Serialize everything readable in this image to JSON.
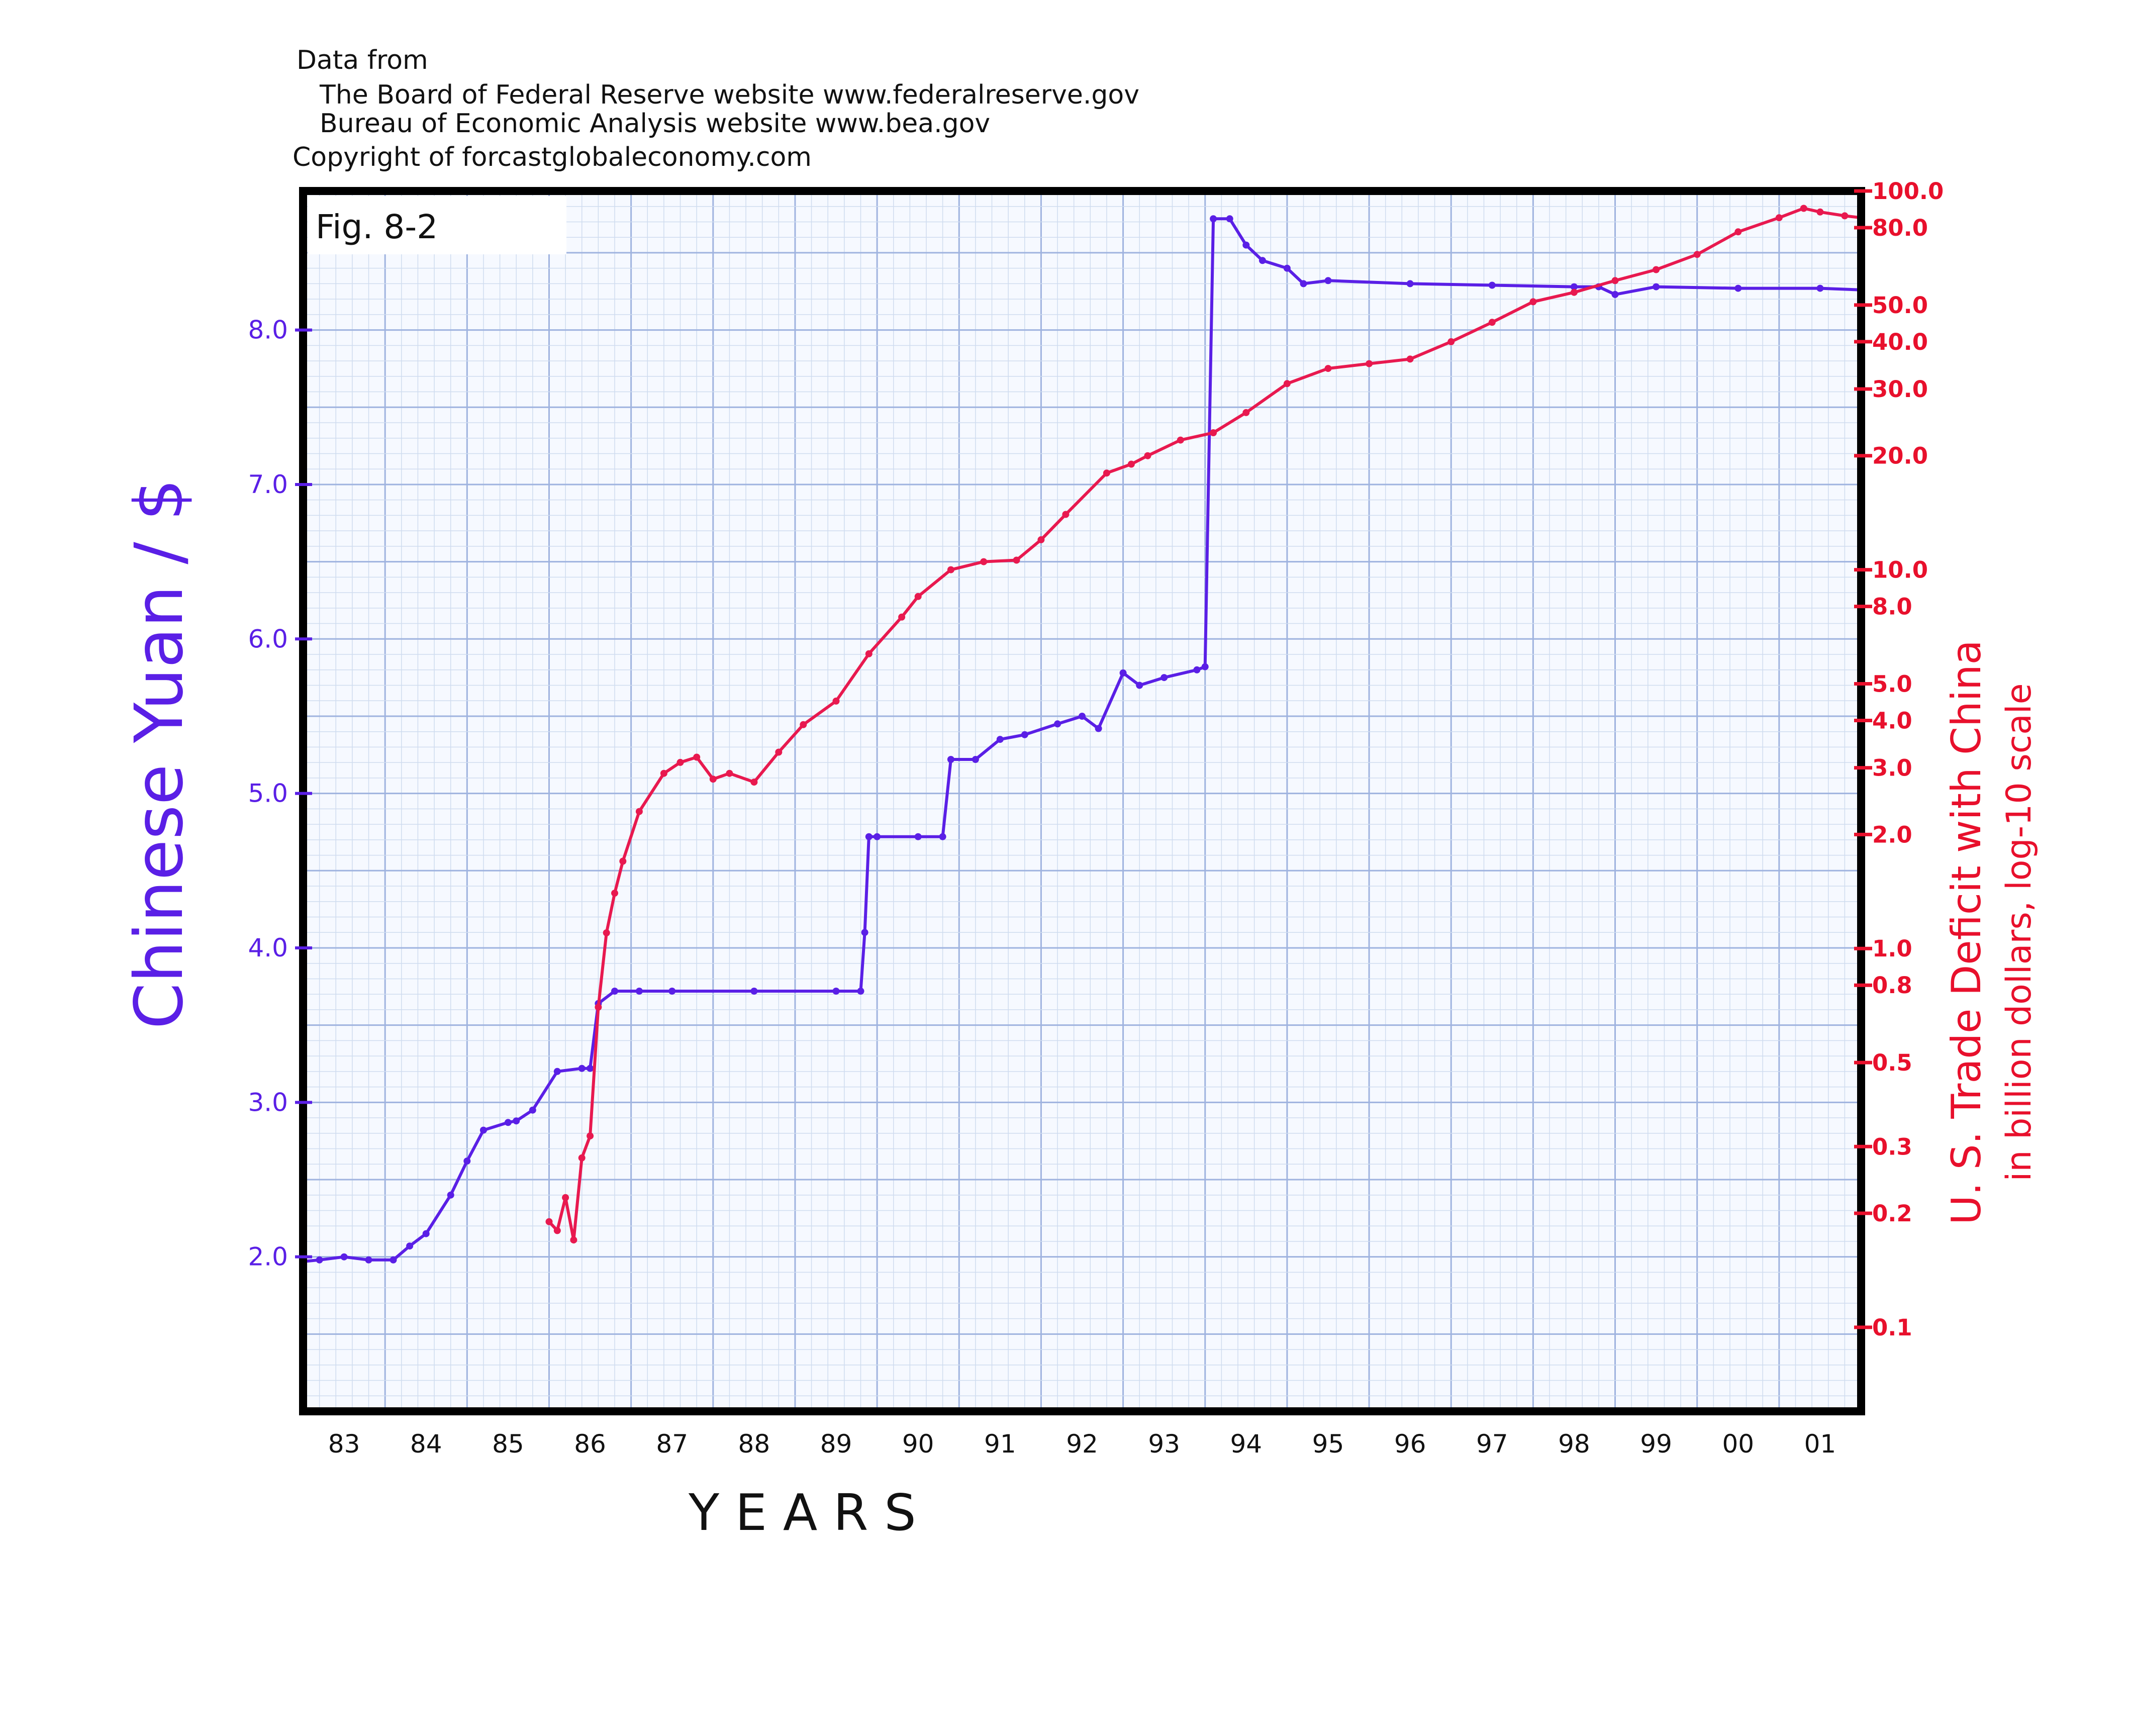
{
  "source": {
    "line1": "Data from",
    "line2": "The Board of Federal Reserve website www.federalreserve.gov",
    "line3": "Bureau of Economic Analysis website www.bea.gov",
    "line4": "Copyright of forcastglobaleconomy.com"
  },
  "colors": {
    "yuan": "#5a1fe6",
    "deficit": "#e8194f",
    "deficit_tick": "#e8102c",
    "grid_minor": "#cfdcef",
    "grid_major": "#9fb3df",
    "frame": "#000000",
    "background": "#ffffff"
  },
  "chart_data": {
    "type": "line",
    "title": "Fig. 8-2",
    "xlabel": "Y E A R S",
    "ylabel": "Chinese Yuan / $",
    "y2label": "U. S. Trade Deficit with China",
    "y2label_sub": "in billion dollars, log-10 scale",
    "x_ticks": [
      "83",
      "84",
      "85",
      "86",
      "87",
      "88",
      "89",
      "90",
      "91",
      "92",
      "93",
      "94",
      "95",
      "96",
      "97",
      "98",
      "99",
      "00",
      "01"
    ],
    "xlim": [
      1982.5,
      2001.5
    ],
    "y_ticks": [
      "2.0",
      "3.0",
      "4.0",
      "5.0",
      "6.0",
      "7.0",
      "8.0"
    ],
    "ylim": [
      1.0,
      8.9
    ],
    "y2_scale": "log10",
    "y2_ticks": [
      "0.1",
      "0.2",
      "0.3",
      "0.5",
      "0.8",
      "1.0",
      "2.0",
      "3.0",
      "4.0",
      "5.0",
      "8.0",
      "10.0",
      "20.0",
      "30.0",
      "40.0",
      "50.0",
      "80.0",
      "100.0"
    ],
    "y2lim": [
      0.06,
      100
    ],
    "grid": true,
    "series": [
      {
        "axis": "left",
        "x": [
          1982.5,
          1982.7,
          1983.0,
          1983.3,
          1983.6,
          1983.8,
          1984.0,
          1984.3,
          1984.5,
          1984.7,
          1985.0,
          1985.1,
          1985.3,
          1985.6,
          1985.9,
          1986.0,
          1986.1,
          1986.3,
          1986.6,
          1987.0,
          1988.0,
          1989.0,
          1989.3,
          1989.35,
          1989.4,
          1989.5,
          1990.0,
          1990.3,
          1990.4,
          1990.7,
          1991.0,
          1991.3,
          1991.7,
          1992.0,
          1992.2,
          1992.5,
          1992.7,
          1993.0,
          1993.4,
          1993.5,
          1993.6,
          1993.8,
          1994.0,
          1994.2,
          1994.5,
          1994.7,
          1995.0,
          1996.0,
          1997.0,
          1998.0,
          1998.3,
          1998.5,
          1999.0,
          2000.0,
          2001.0,
          2001.5
        ],
        "y": [
          1.97,
          1.98,
          2.0,
          1.98,
          1.98,
          2.07,
          2.15,
          2.4,
          2.62,
          2.82,
          2.87,
          2.88,
          2.95,
          3.2,
          3.22,
          3.22,
          3.64,
          3.72,
          3.72,
          3.72,
          3.72,
          3.72,
          3.72,
          4.1,
          4.72,
          4.72,
          4.72,
          4.72,
          5.22,
          5.22,
          5.35,
          5.38,
          5.45,
          5.5,
          5.42,
          5.78,
          5.7,
          5.75,
          5.8,
          5.82,
          8.72,
          8.72,
          8.55,
          8.45,
          8.4,
          8.3,
          8.32,
          8.3,
          8.29,
          8.28,
          8.28,
          8.23,
          8.28,
          8.27,
          8.27,
          8.26
        ]
      },
      {
        "axis": "right",
        "x": [
          1985.5,
          1985.6,
          1985.7,
          1985.8,
          1985.9,
          1986.0,
          1986.1,
          1986.2,
          1986.3,
          1986.4,
          1986.6,
          1986.9,
          1987.1,
          1987.3,
          1987.5,
          1987.7,
          1988.0,
          1988.3,
          1988.6,
          1989.0,
          1989.4,
          1989.8,
          1990.0,
          1990.4,
          1990.8,
          1991.2,
          1991.5,
          1991.8,
          1992.3,
          1992.6,
          1992.8,
          1993.2,
          1993.6,
          1994.0,
          1994.5,
          1995.0,
          1995.5,
          1996.0,
          1996.5,
          1997.0,
          1997.5,
          1998.0,
          1998.5,
          1999.0,
          1999.5,
          2000.0,
          2000.5,
          2000.8,
          2001.0,
          2001.3,
          2001.5
        ],
        "y": [
          0.19,
          0.18,
          0.22,
          0.17,
          0.28,
          0.32,
          0.7,
          1.1,
          1.4,
          1.7,
          2.3,
          2.9,
          3.1,
          3.2,
          2.8,
          2.9,
          2.75,
          3.3,
          3.9,
          4.5,
          6.0,
          7.5,
          8.5,
          10.0,
          10.5,
          10.6,
          12.0,
          14.0,
          18.0,
          19.0,
          20.0,
          22.0,
          23.0,
          26.0,
          31.0,
          34.0,
          35.0,
          36.0,
          40.0,
          45.0,
          51.0,
          54.0,
          58.0,
          62.0,
          68.0,
          78.0,
          85.0,
          90.0,
          88.0,
          86.0,
          85.0
        ]
      }
    ]
  }
}
